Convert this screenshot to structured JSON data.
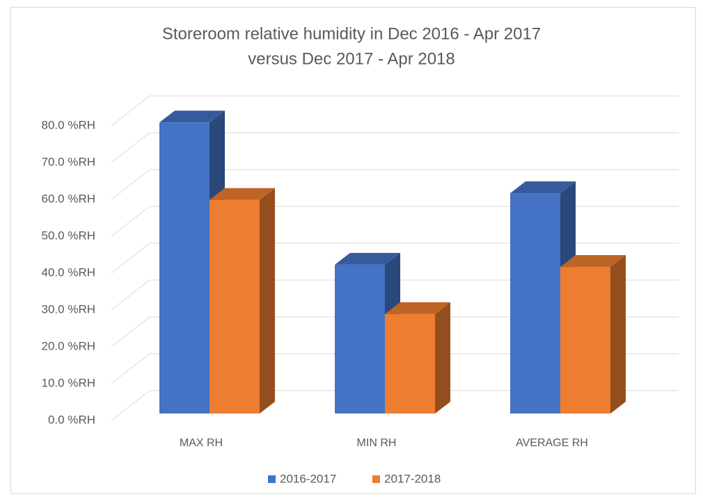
{
  "chart_data": {
    "type": "bar3d",
    "title": [
      "Storeroom relative humidity in Dec 2016 - Apr 2017",
      "versus Dec 2017 - Apr 2018"
    ],
    "categories": [
      "MAX RH",
      "MIN RH",
      "AVERAGE RH"
    ],
    "series": [
      {
        "name": "2016-2017",
        "color": "#4472c4",
        "values": [
          79,
          40.4,
          59.8
        ]
      },
      {
        "name": "2017-2018",
        "color": "#ed7d31",
        "values": [
          58,
          27,
          39.8
        ]
      }
    ],
    "ylim": [
      0,
      80
    ],
    "yticks": [
      {
        "value": 0,
        "label": "0.0 %RH"
      },
      {
        "value": 10,
        "label": "10.0 %RH"
      },
      {
        "value": 20,
        "label": "20.0 %RH"
      },
      {
        "value": 30,
        "label": "30.0 %RH"
      },
      {
        "value": 40,
        "label": "40.0 %RH"
      },
      {
        "value": 50,
        "label": "50.0 %RH"
      },
      {
        "value": 60,
        "label": "60.0 %RH"
      },
      {
        "value": 70,
        "label": "70.0 %RH"
      },
      {
        "value": 80,
        "label": "80.0 %RH"
      }
    ],
    "grid": true,
    "legend": "bottom"
  }
}
